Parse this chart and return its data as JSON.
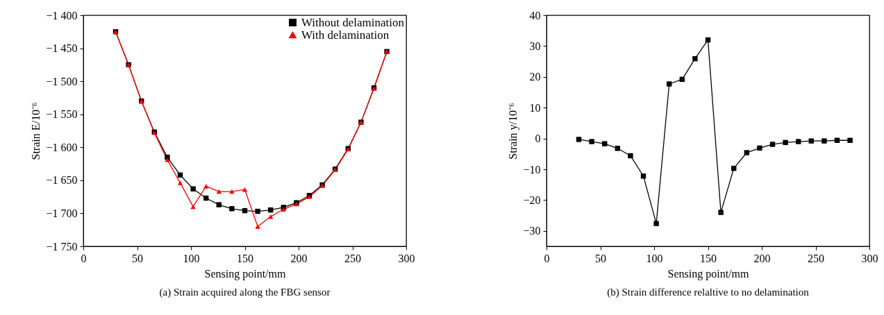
{
  "chart_data": [
    {
      "type": "line",
      "title": "(a) Strain acquired along the FBG sensor",
      "xlabel": "Sensing point/mm",
      "ylabel": "Strain E/10⁻⁶",
      "x": [
        30,
        42,
        54,
        66,
        78,
        90,
        102,
        114,
        126,
        138,
        150,
        162,
        174,
        186,
        198,
        210,
        222,
        234,
        246,
        258,
        270,
        282
      ],
      "series": [
        {
          "name": "Without delamination",
          "color": "#000000",
          "marker": "square",
          "values": [
            -1425,
            -1475,
            -1530,
            -1577,
            -1615,
            -1642,
            -1663,
            -1677,
            -1687,
            -1693,
            -1696,
            -1697,
            -1695,
            -1691,
            -1684,
            -1673,
            -1657,
            -1633,
            -1602,
            -1562,
            -1510,
            -1455
          ]
        },
        {
          "name": "With delamination",
          "color": "#ff0000",
          "marker": "triangle",
          "values": [
            -1425,
            -1475,
            -1530,
            -1578,
            -1619,
            -1654,
            -1690,
            -1659,
            -1667,
            -1667,
            -1664,
            -1720,
            -1705,
            -1694,
            -1686,
            -1675,
            -1658,
            -1634,
            -1603,
            -1562,
            -1511,
            -1455
          ]
        }
      ],
      "xlim": [
        0,
        300
      ],
      "xticks": [
        0,
        50,
        100,
        150,
        200,
        250,
        300
      ],
      "ylim": [
        -1750,
        -1400
      ],
      "yticks": [
        {
          "value": -1750,
          "label": "−1 750"
        },
        {
          "value": -1700,
          "label": "−1 700"
        },
        {
          "value": -1650,
          "label": "−1 650"
        },
        {
          "value": -1600,
          "label": "−1 600"
        },
        {
          "value": -1550,
          "label": "−1 550"
        },
        {
          "value": -1500,
          "label": "−1 500"
        },
        {
          "value": -1450,
          "label": "−1 450"
        },
        {
          "value": -1400,
          "label": "−1 400"
        }
      ],
      "legend": "top right",
      "grid": false,
      "line_style": "solid"
    },
    {
      "type": "line",
      "title": "(b) Strain difference relaltive to no delamination",
      "xlabel": "Sensing point/mm",
      "ylabel": "Strain y/10⁻⁶",
      "x": [
        30,
        42,
        54,
        66,
        78,
        90,
        102,
        114,
        126,
        138,
        150,
        162,
        174,
        186,
        198,
        210,
        222,
        234,
        246,
        258,
        270,
        282
      ],
      "series": [
        {
          "color": "#000000",
          "values": [
            -0.3,
            -1,
            -1.7,
            -3.2,
            -5.6,
            -12.2,
            -27.6,
            17.7,
            19.2,
            25.9,
            32,
            -24,
            -9.7,
            -4.6,
            -3.1,
            -1.9,
            -1.3,
            -1,
            -0.8,
            -0.8,
            -0.6,
            -0.6
          ]
        }
      ],
      "marker": "square",
      "xlim": [
        0,
        300
      ],
      "xticks": [
        0,
        50,
        100,
        150,
        200,
        250,
        300
      ],
      "ylim": [
        -35,
        40
      ],
      "yticks": [
        {
          "value": -30,
          "label": "−30"
        },
        {
          "value": -20,
          "label": "−20"
        },
        {
          "value": -10,
          "label": "−10"
        },
        0,
        10,
        20,
        30,
        40
      ],
      "grid": false,
      "line_style": "solid"
    }
  ]
}
